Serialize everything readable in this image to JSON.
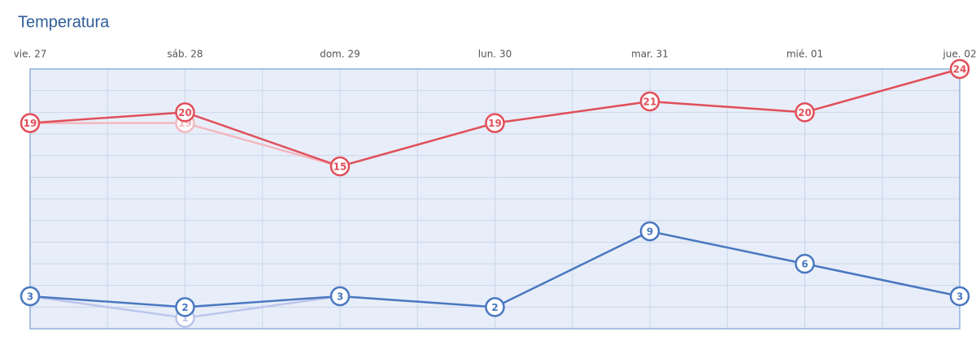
{
  "chart_data": {
    "type": "line",
    "title": "Temperatura",
    "categories": [
      "vie. 27",
      "sáb. 28",
      "dom. 29",
      "lun. 30",
      "mar. 31",
      "mié. 01",
      "jue. 02"
    ],
    "series": [
      {
        "color": "#f2b8c0",
        "values": [
          19,
          19,
          15,
          19,
          21,
          20,
          24
        ]
      },
      {
        "color": "#bcc6ec",
        "values": [
          3,
          1,
          3,
          2,
          9,
          6,
          3
        ]
      },
      {
        "color": "#e0505a",
        "values": [
          19,
          20,
          15,
          19,
          21,
          20,
          24
        ]
      },
      {
        "color": "#4a78c0",
        "values": [
          3,
          2,
          3,
          2,
          9,
          6,
          3
        ]
      }
    ],
    "ylim": [
      0,
      24
    ],
    "yticks": [
      0,
      2,
      4,
      6,
      8,
      10,
      12,
      14,
      16,
      18,
      20,
      22,
      24
    ],
    "grid": true
  }
}
